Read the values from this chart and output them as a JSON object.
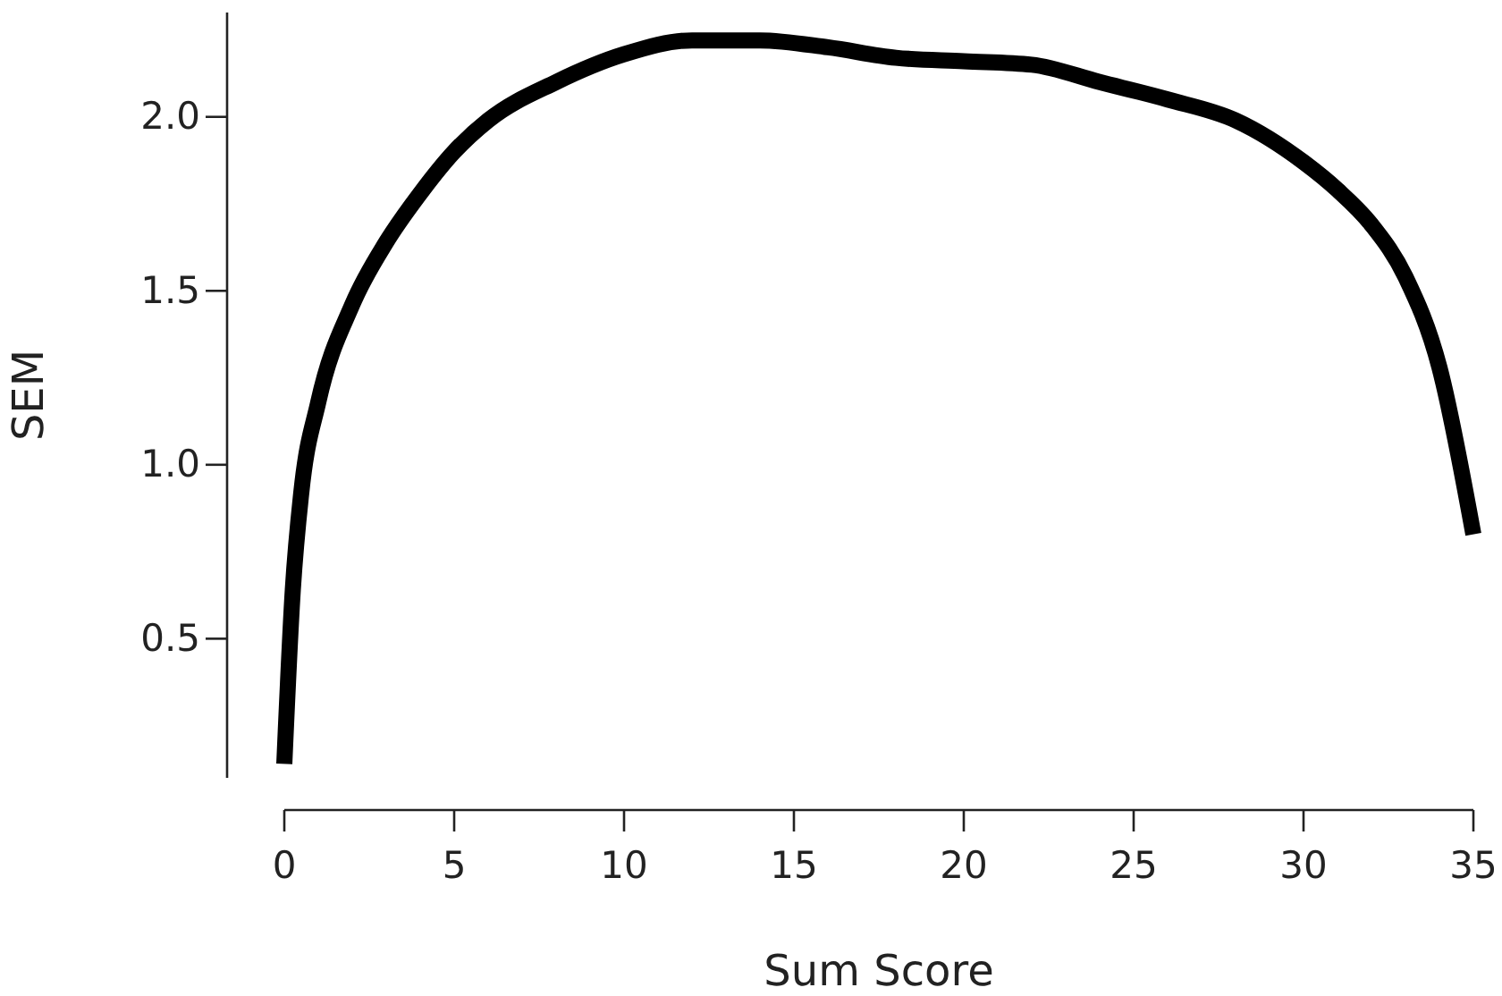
{
  "chart_data": {
    "type": "line",
    "xlabel": "Sum Score",
    "ylabel": "SEM",
    "x": [
      0,
      0.25,
      0.5,
      1,
      2,
      3,
      4,
      5,
      6,
      8,
      10,
      12,
      14,
      16,
      18,
      20,
      22,
      24,
      26,
      28,
      30,
      31,
      32,
      33,
      34,
      35
    ],
    "series": [
      {
        "color": "#000000",
        "values": [
          0.14,
          0.64,
          0.92,
          1.18,
          1.46,
          1.64,
          1.78,
          1.9,
          1.99,
          2.1,
          2.18,
          2.22,
          2.22,
          2.2,
          2.17,
          2.16,
          2.15,
          2.1,
          2.05,
          1.99,
          1.87,
          1.79,
          1.69,
          1.54,
          1.28,
          0.8
        ]
      }
    ],
    "xlim": [
      0,
      35
    ],
    "ylim": [
      0.1,
      2.3
    ],
    "xticks": [
      0,
      5,
      10,
      15,
      20,
      25,
      30,
      35
    ],
    "yticks": [
      0.5,
      {
        "value": 1,
        "label": "1.0"
      },
      1.5,
      {
        "value": 2,
        "label": "2.0"
      }
    ],
    "grid": false,
    "marker": "none",
    "line_style": "solid"
  }
}
